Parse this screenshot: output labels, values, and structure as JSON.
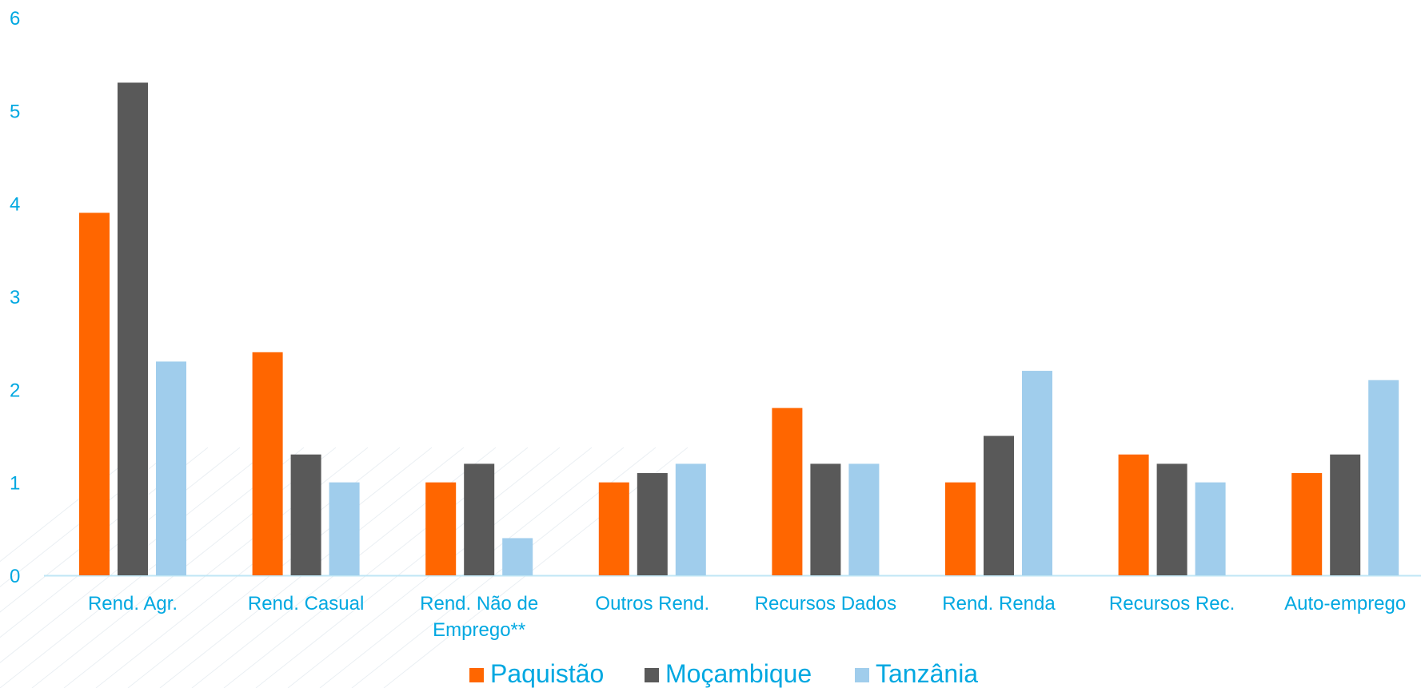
{
  "colors": {
    "axis_text": "#00A8E1",
    "axis_line": "#BFE6F5",
    "background_lines": "#EAEFF3"
  },
  "chart_data": {
    "type": "bar",
    "categories": [
      [
        "Rend. Agr."
      ],
      [
        "Rend. Casual"
      ],
      [
        "Rend. Não de",
        "Emprego**"
      ],
      [
        "Outros Rend."
      ],
      [
        "Recursos Dados"
      ],
      [
        "Rend. Renda"
      ],
      [
        "Recursos Rec."
      ],
      [
        "Auto-emprego"
      ]
    ],
    "series": [
      {
        "name": "Paquistão",
        "color": "#FF6600",
        "values": [
          3.9,
          2.4,
          1.0,
          1.0,
          1.8,
          1.0,
          1.3,
          1.1
        ]
      },
      {
        "name": "Moçambique",
        "color": "#595959",
        "values": [
          5.3,
          1.3,
          1.2,
          1.1,
          1.2,
          1.5,
          1.2,
          1.3
        ]
      },
      {
        "name": "Tanzânia",
        "color": "#A0CDEC",
        "values": [
          2.3,
          1.0,
          0.4,
          1.2,
          1.2,
          2.2,
          1.0,
          2.1
        ]
      }
    ],
    "ylim": [
      0,
      6
    ],
    "yticks": [
      0,
      1,
      2,
      3,
      4,
      5,
      6
    ],
    "grid": false,
    "legend_position": "bottom"
  }
}
